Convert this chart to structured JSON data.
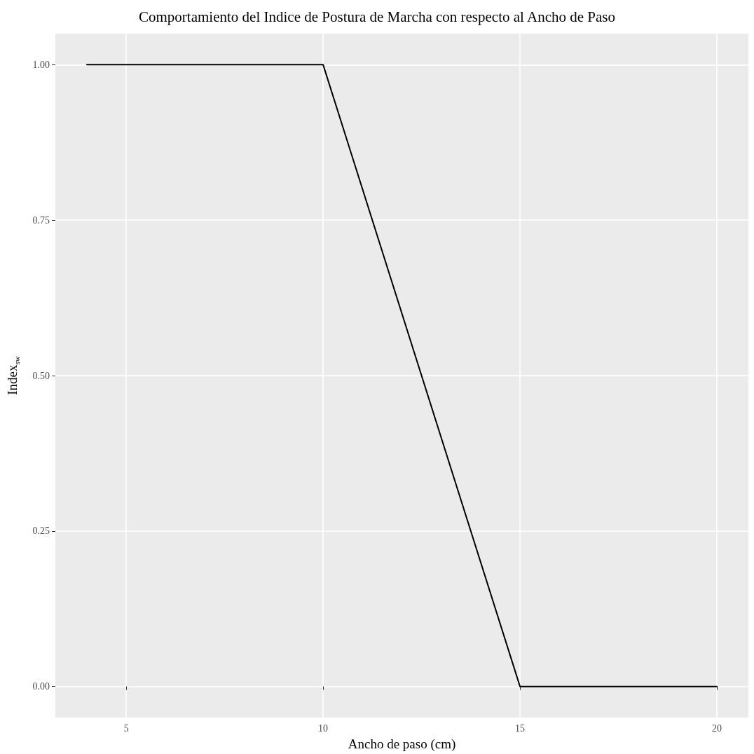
{
  "chart_data": {
    "type": "line",
    "title": "Comportamiento del Indice de Postura de Marcha con respecto al Ancho de Paso",
    "xlabel": "Ancho de paso (cm)",
    "ylabel": "Index$_{sw}$",
    "x": [
      4,
      10,
      15,
      20
    ],
    "series": [
      {
        "color": "#000000",
        "values": [
          1,
          1,
          0,
          0
        ]
      }
    ],
    "xlim": [
      3.2,
      20.8
    ],
    "xticks": [
      5,
      10,
      15,
      20
    ],
    "ylim": [
      -0.05,
      1.05
    ],
    "yticks": [
      {
        "value": 0,
        "label": "0.00"
      },
      {
        "value": 0.25,
        "label": "0.25"
      },
      {
        "value": 0.5,
        "label": "0.50"
      },
      {
        "value": 0.75,
        "label": "0.75"
      },
      {
        "value": 1,
        "label": "1.00"
      }
    ],
    "grid": true,
    "marker": "none",
    "line_style": "solid"
  }
}
